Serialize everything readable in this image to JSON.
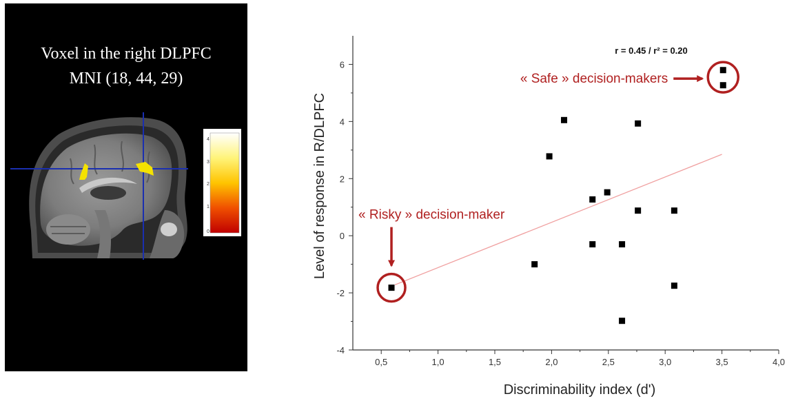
{
  "brain_panel": {
    "caption_line1": "Voxel in the right DLPFC",
    "caption_line2": "MNI (18, 44, 29)",
    "colorbar_ticks": [
      "4",
      "3",
      "2",
      "1",
      "0"
    ],
    "crosshair_color": "#1a2fb0",
    "activation_color": "#f5e300",
    "icons": [
      "sagittal-mri-slice",
      "activation-colorbar"
    ]
  },
  "chart_data": {
    "type": "scatter",
    "title": "",
    "xlabel": "Discriminability index (d')",
    "ylabel": "Level of response in R/DLPFC",
    "xlim": [
      0.25,
      4.0
    ],
    "ylim": [
      -4,
      7
    ],
    "x_ticks": [
      0.5,
      1.0,
      1.5,
      2.0,
      2.5,
      3.0,
      3.5,
      4.0
    ],
    "x_tick_labels": [
      "0,5",
      "1,0",
      "1,5",
      "2,0",
      "2,5",
      "3,0",
      "3,5",
      "4,0"
    ],
    "y_ticks": [
      -4,
      -2,
      0,
      2,
      4,
      6
    ],
    "y_tick_labels": [
      "-4",
      "-2",
      "0",
      "2",
      "4",
      "6"
    ],
    "grid": false,
    "legend": "none",
    "points": [
      {
        "x": 0.59,
        "y": -1.82
      },
      {
        "x": 1.85,
        "y": -1.0
      },
      {
        "x": 1.98,
        "y": 2.78
      },
      {
        "x": 2.11,
        "y": 4.05
      },
      {
        "x": 2.36,
        "y": 1.27
      },
      {
        "x": 2.36,
        "y": -0.3
      },
      {
        "x": 2.49,
        "y": 1.52
      },
      {
        "x": 2.62,
        "y": -0.3
      },
      {
        "x": 2.62,
        "y": -2.98
      },
      {
        "x": 2.76,
        "y": 3.93
      },
      {
        "x": 2.76,
        "y": 0.88
      },
      {
        "x": 3.08,
        "y": 0.88
      },
      {
        "x": 3.08,
        "y": -1.75
      },
      {
        "x": 3.51,
        "y": 5.8
      },
      {
        "x": 3.51,
        "y": 5.27
      }
    ],
    "regression_line": {
      "x": [
        0.62,
        3.5
      ],
      "y": [
        -1.72,
        2.85
      ],
      "color": "#f0a0a0"
    },
    "stat_annotation": "r = 0.45 / r² = 0.20",
    "annotations": [
      {
        "label": "« Safe » decision-makers",
        "circled_x": 3.51,
        "circled_y": 5.55
      },
      {
        "label": "« Risky » decision-maker",
        "circled_x": 0.59,
        "circled_y": -1.82
      }
    ],
    "annotation_color": "#b02020",
    "point_color": "#000000"
  }
}
